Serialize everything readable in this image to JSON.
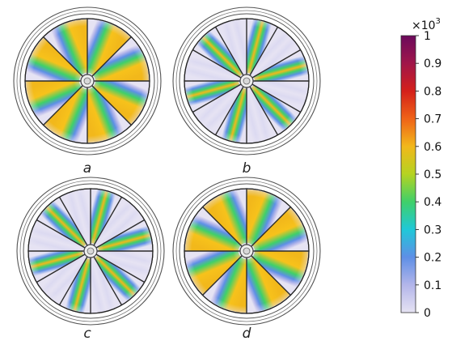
{
  "panels": [
    {
      "id": "a",
      "caption": "a",
      "blades": 8,
      "blade_start_deg": 0,
      "hot_edge": "leading"
    },
    {
      "id": "b",
      "caption": "b",
      "blades": 12,
      "blade_start_deg": 0,
      "hot_edge": "center"
    },
    {
      "id": "c",
      "caption": "c",
      "blades": 12,
      "blade_start_deg": 0,
      "hot_edge": "center"
    },
    {
      "id": "d",
      "caption": "d",
      "blades": 8,
      "blade_start_deg": 0,
      "hot_edge": "trailing"
    }
  ],
  "colorbar": {
    "multiplier_base": "×10",
    "multiplier_exp": "3",
    "ticks": [
      "0",
      "0.1",
      "0.2",
      "0.3",
      "0.4",
      "0.5",
      "0.6",
      "0.7",
      "0.8",
      "0.9",
      "1"
    ],
    "colormap": [
      "#e6e3f3",
      "#b3b5ea",
      "#5e8fe6",
      "#1fc8d8",
      "#3fd06a",
      "#b5d321",
      "#f2b81b",
      "#ef6318",
      "#d4201a",
      "#a0164a",
      "#6b0a5c"
    ]
  }
}
